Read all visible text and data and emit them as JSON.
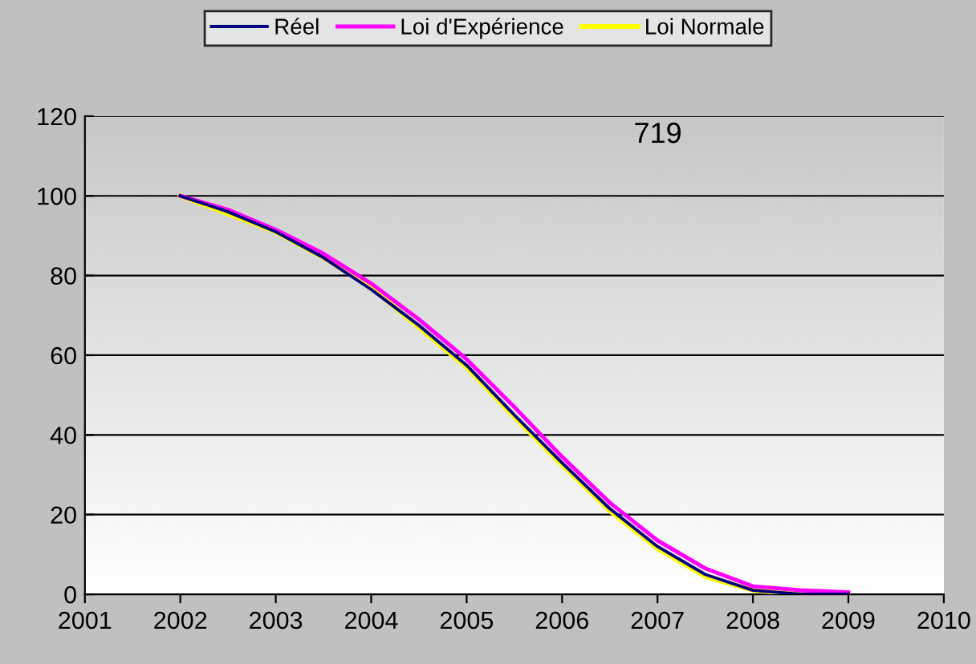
{
  "chart_data": {
    "type": "line",
    "x": [
      2002,
      2002.5,
      2003,
      2003.5,
      2004,
      2004.5,
      2005,
      2005.5,
      2006,
      2006.5,
      2007,
      2007.5,
      2008,
      2008.5,
      2009
    ],
    "series": [
      {
        "name": "Réel",
        "color": "#000080",
        "values": [
          100,
          96,
          91,
          84.5,
          76.5,
          67.5,
          57.5,
          45,
          33,
          21.5,
          12,
          5,
          1,
          0,
          0
        ]
      },
      {
        "name": "Loi d'Expérience",
        "color": "#ff00ff",
        "values": [
          100,
          96.5,
          91.5,
          85.5,
          78,
          69,
          59,
          47,
          34.5,
          23,
          13.5,
          6.5,
          2,
          1,
          0.5
        ]
      },
      {
        "name": "Loi Normale",
        "color": "#ffff00",
        "values": [
          100,
          95.5,
          91,
          84.5,
          77,
          67,
          57,
          44.5,
          32.5,
          21,
          11.5,
          4.5,
          1,
          0,
          0
        ]
      }
    ],
    "xlim": [
      2001,
      2010
    ],
    "xticks": [
      2001,
      2002,
      2003,
      2004,
      2005,
      2006,
      2007,
      2008,
      2009,
      2010
    ],
    "ylim": [
      0,
      120
    ],
    "yticks": [
      0,
      20,
      40,
      60,
      80,
      100,
      120
    ],
    "grid": "y",
    "legend": "top",
    "marker": "none",
    "line_style": "solid",
    "annotations": [
      "719"
    ]
  }
}
